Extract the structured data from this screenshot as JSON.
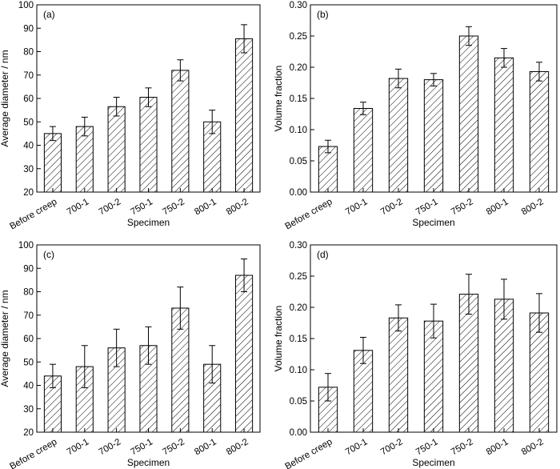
{
  "figure": {
    "xlabel": "Specimen",
    "categories": [
      "Before creep",
      "700-1",
      "700-2",
      "750-1",
      "750-2",
      "800-1",
      "800-2"
    ]
  },
  "chart_data": [
    {
      "type": "bar",
      "panel": "(a)",
      "categories": [
        "Before creep",
        "700-1",
        "700-2",
        "750-1",
        "750-2",
        "800-1",
        "800-2"
      ],
      "values": [
        45,
        48,
        56.5,
        60.5,
        72,
        50,
        85.5
      ],
      "errors": [
        3,
        4,
        4,
        4,
        4.5,
        5,
        6
      ],
      "xlabel": "Specimen",
      "ylabel": "Average diameter / nm",
      "ylim": [
        20,
        100
      ],
      "yticks": [
        20,
        30,
        40,
        50,
        60,
        70,
        80,
        90,
        100
      ],
      "ytick_labels": [
        "20",
        "30",
        "40",
        "50",
        "60",
        "70",
        "80",
        "90",
        "100"
      ]
    },
    {
      "type": "bar",
      "panel": "(b)",
      "categories": [
        "Before creep",
        "700-1",
        "700-2",
        "750-1",
        "750-2",
        "800-1",
        "800-2"
      ],
      "values": [
        0.073,
        0.134,
        0.182,
        0.18,
        0.25,
        0.215,
        0.193
      ],
      "errors": [
        0.01,
        0.01,
        0.015,
        0.01,
        0.015,
        0.015,
        0.015
      ],
      "xlabel": "Specimen",
      "ylabel": "Volume fraction",
      "ylim": [
        0,
        0.3
      ],
      "yticks": [
        0,
        0.05,
        0.1,
        0.15,
        0.2,
        0.25,
        0.3
      ],
      "ytick_labels": [
        "0.00",
        "0.05",
        "0.10",
        "0.15",
        "0.20",
        "0.25",
        "0.30"
      ]
    },
    {
      "type": "bar",
      "panel": "(c)",
      "categories": [
        "Before creep",
        "700-1",
        "700-2",
        "750-1",
        "750-2",
        "800-1",
        "800-2"
      ],
      "values": [
        44,
        48,
        56,
        57,
        73,
        49,
        87
      ],
      "errors": [
        5,
        9,
        8,
        8,
        9,
        8,
        7
      ],
      "xlabel": "Specimen",
      "ylabel": "Average diameter / nm",
      "ylim": [
        20,
        100
      ],
      "yticks": [
        20,
        30,
        40,
        50,
        60,
        70,
        80,
        90,
        100
      ],
      "ytick_labels": [
        "20",
        "30",
        "40",
        "50",
        "60",
        "70",
        "80",
        "90",
        "100"
      ]
    },
    {
      "type": "bar",
      "panel": "(d)",
      "categories": [
        "Before creep",
        "700-1",
        "700-2",
        "750-1",
        "750-2",
        "800-1",
        "800-2"
      ],
      "values": [
        0.072,
        0.131,
        0.183,
        0.178,
        0.221,
        0.213,
        0.191
      ],
      "errors": [
        0.022,
        0.021,
        0.021,
        0.027,
        0.032,
        0.032,
        0.031
      ],
      "xlabel": "Specimen",
      "ylabel": "Volume fraction",
      "ylim": [
        0,
        0.3
      ],
      "yticks": [
        0,
        0.05,
        0.1,
        0.15,
        0.2,
        0.25,
        0.3
      ],
      "ytick_labels": [
        "0.00",
        "0.05",
        "0.10",
        "0.15",
        "0.20",
        "0.25",
        "0.30"
      ]
    }
  ]
}
